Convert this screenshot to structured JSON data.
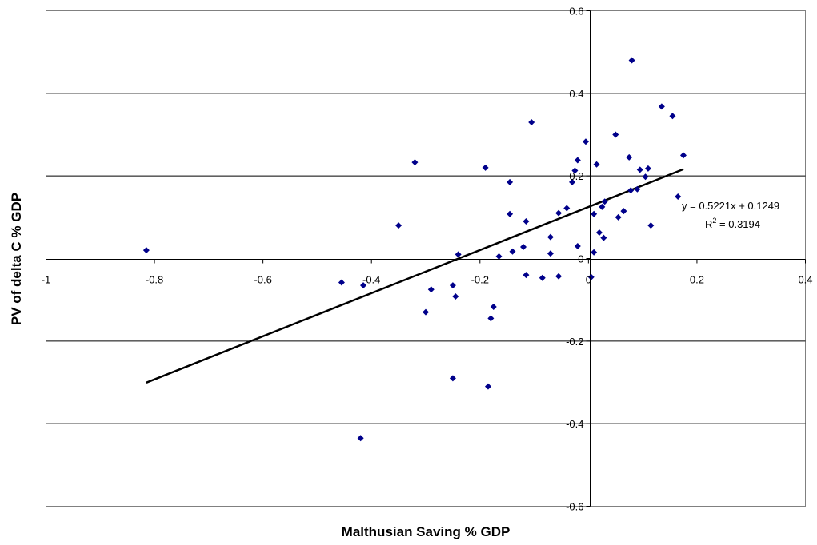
{
  "chart_data": {
    "type": "scatter",
    "xlabel": "Malthusian Saving % GDP",
    "ylabel": "PV of delta C % GDP",
    "xlim": [
      -1,
      0.4
    ],
    "ylim": [
      -0.6,
      0.6
    ],
    "x_ticks": [
      -1,
      -0.8,
      -0.6,
      -0.4,
      -0.2,
      0,
      0.2,
      0.4
    ],
    "y_ticks": [
      -0.6,
      -0.4,
      -0.2,
      0,
      0.2,
      0.4,
      0.6
    ],
    "x_tick_labels": [
      "-1",
      "-0.8",
      "-0.6",
      "-0.4",
      "-0.2",
      "0",
      "0.2",
      "0.4"
    ],
    "y_tick_labels": [
      "-0.6",
      "-0.4",
      "-0.2",
      "0",
      "0.2",
      "0.4",
      "0.6"
    ],
    "grid": "horizontal",
    "marker_color": "#00008B",
    "trendline": {
      "slope": 0.5221,
      "intercept": 0.1249,
      "x_range": [
        -0.815,
        0.175
      ],
      "equation_label": "y = 0.5221x + 0.1249",
      "r2_label_prefix": "R",
      "r2_label_sup": "2",
      "r2_label_value": " = 0.3194",
      "color": "#000000"
    },
    "points": [
      {
        "x": -0.815,
        "y": 0.02
      },
      {
        "x": -0.455,
        "y": -0.058
      },
      {
        "x": -0.415,
        "y": -0.065
      },
      {
        "x": -0.42,
        "y": -0.435
      },
      {
        "x": -0.35,
        "y": 0.08
      },
      {
        "x": -0.32,
        "y": 0.233
      },
      {
        "x": -0.3,
        "y": -0.13
      },
      {
        "x": -0.29,
        "y": -0.075
      },
      {
        "x": -0.25,
        "y": -0.065
      },
      {
        "x": -0.245,
        "y": -0.092
      },
      {
        "x": -0.25,
        "y": -0.29
      },
      {
        "x": -0.24,
        "y": 0.01
      },
      {
        "x": -0.19,
        "y": 0.22
      },
      {
        "x": -0.185,
        "y": -0.31
      },
      {
        "x": -0.18,
        "y": -0.145
      },
      {
        "x": -0.175,
        "y": -0.117
      },
      {
        "x": -0.165,
        "y": 0.005
      },
      {
        "x": -0.145,
        "y": 0.185
      },
      {
        "x": -0.145,
        "y": 0.108
      },
      {
        "x": -0.14,
        "y": 0.017
      },
      {
        "x": -0.12,
        "y": 0.028
      },
      {
        "x": -0.115,
        "y": 0.09
      },
      {
        "x": -0.115,
        "y": -0.04
      },
      {
        "x": -0.105,
        "y": 0.33
      },
      {
        "x": -0.085,
        "y": -0.047
      },
      {
        "x": -0.07,
        "y": 0.052
      },
      {
        "x": -0.07,
        "y": 0.012
      },
      {
        "x": -0.055,
        "y": 0.11
      },
      {
        "x": -0.055,
        "y": -0.043
      },
      {
        "x": -0.04,
        "y": 0.122
      },
      {
        "x": -0.03,
        "y": 0.185
      },
      {
        "x": -0.025,
        "y": 0.213
      },
      {
        "x": -0.02,
        "y": 0.238
      },
      {
        "x": -0.02,
        "y": 0.03
      },
      {
        "x": -0.005,
        "y": 0.283
      },
      {
        "x": 0.005,
        "y": -0.045
      },
      {
        "x": 0.01,
        "y": 0.108
      },
      {
        "x": 0.01,
        "y": 0.015
      },
      {
        "x": 0.015,
        "y": 0.228
      },
      {
        "x": 0.02,
        "y": 0.063
      },
      {
        "x": 0.025,
        "y": 0.125
      },
      {
        "x": 0.03,
        "y": 0.138
      },
      {
        "x": 0.028,
        "y": 0.05
      },
      {
        "x": 0.05,
        "y": 0.3
      },
      {
        "x": 0.055,
        "y": 0.1
      },
      {
        "x": 0.065,
        "y": 0.115
      },
      {
        "x": 0.075,
        "y": 0.245
      },
      {
        "x": 0.078,
        "y": 0.165
      },
      {
        "x": 0.08,
        "y": 0.48
      },
      {
        "x": 0.09,
        "y": 0.168
      },
      {
        "x": 0.095,
        "y": 0.215
      },
      {
        "x": 0.105,
        "y": 0.198
      },
      {
        "x": 0.11,
        "y": 0.218
      },
      {
        "x": 0.115,
        "y": 0.08
      },
      {
        "x": 0.135,
        "y": 0.368
      },
      {
        "x": 0.155,
        "y": 0.345
      },
      {
        "x": 0.165,
        "y": 0.15
      },
      {
        "x": 0.175,
        "y": 0.25
      }
    ]
  }
}
